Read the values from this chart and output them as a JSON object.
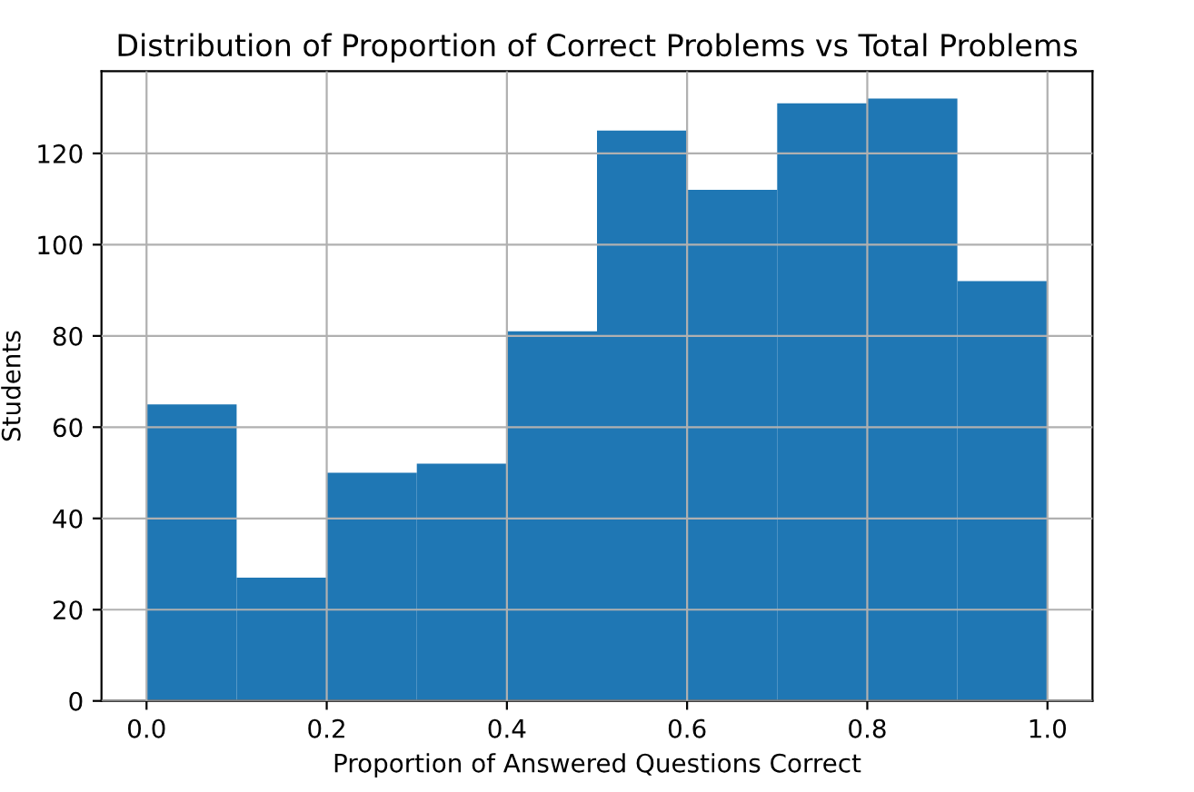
{
  "chart_data": {
    "type": "histogram",
    "title": "Distribution of Proportion of Correct Problems vs Total Problems",
    "xlabel": "Proportion of Answered Questions Correct",
    "ylabel": "Students",
    "bins": [
      0.0,
      0.1,
      0.2,
      0.3,
      0.4,
      0.5,
      0.6,
      0.7,
      0.8,
      0.9,
      1.0
    ],
    "values": [
      65,
      27,
      50,
      52,
      81,
      125,
      112,
      131,
      132,
      92
    ],
    "color": "#1f77b4",
    "xlim": [
      -0.05,
      1.05
    ],
    "xticks": [
      {
        "value": 0.0,
        "label": "0.0"
      },
      0.2,
      0.4,
      0.6,
      0.8,
      {
        "value": 1.0,
        "label": "1.0"
      }
    ],
    "ylim": [
      0,
      138
    ],
    "yticks": [
      0,
      20,
      40,
      60,
      80,
      100,
      120
    ],
    "grid": true
  }
}
